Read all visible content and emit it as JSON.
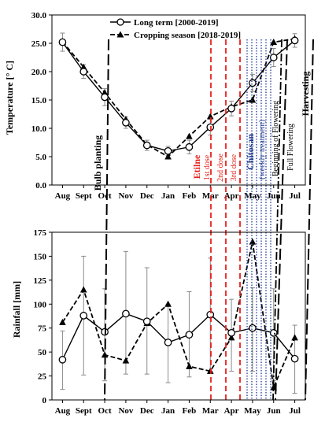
{
  "colors": {
    "frame": "#000000",
    "etilne": "#e8201c",
    "chitosan": "#1f3a93",
    "series": "#000000"
  },
  "chart_data": [
    {
      "type": "line",
      "ylabel": "Temperature [° C]",
      "ylim": [
        0,
        30
      ],
      "yticks": [
        "0.0",
        "5.0",
        "10.0",
        "15.0",
        "20.0",
        "25.0",
        "30.0"
      ],
      "categories": [
        "Aug",
        "Sept",
        "Oct",
        "Nov",
        "Dec",
        "Jan",
        "Feb",
        "Mar",
        "Apr",
        "May",
        "Jun",
        "Jul"
      ],
      "legend_position": "top",
      "series": [
        {
          "name": "Long term [2000-2019]",
          "style": "solid-open-circle",
          "values": [
            25.2,
            20.0,
            15.5,
            11.0,
            7.0,
            6.0,
            6.7,
            10.2,
            13.5,
            18.0,
            22.5,
            25.5
          ],
          "error": [
            1.6,
            1.2,
            1.5,
            1.0,
            0.9,
            0.8,
            1.2,
            1.4,
            1.3,
            1.5,
            1.6,
            1.2
          ]
        },
        {
          "name": "Cropping season [2018-2019]",
          "style": "dashed-filled-triangle",
          "values": [
            25.3,
            20.8,
            16.3,
            11.6,
            7.1,
            5.0,
            8.6,
            12.1,
            13.8,
            15.0,
            25.2,
            25.8
          ]
        }
      ],
      "annotations": {
        "bulb_planting": "Bulb planting",
        "etilne": "Etilne",
        "dose_1": "1st dose",
        "dose_2": "2nd dose",
        "dose_3": "3rd dose",
        "chitosan": "Chitosan",
        "chitosan_sub": "(weekly treatment)",
        "beginning_flowering": "Beginning of Flowering",
        "full_flowering": "Full Flowering",
        "harvesting": "Harvesting"
      }
    },
    {
      "type": "line",
      "ylabel": "Rainfall [mm]",
      "ylim": [
        0,
        175
      ],
      "yticks": [
        "0",
        "25",
        "50",
        "75",
        "100",
        "125",
        "150",
        "175"
      ],
      "categories": [
        "Aug",
        "Sept",
        "Oct",
        "Nov",
        "Dec",
        "Jan",
        "Feb",
        "Mar",
        "Apr",
        "May",
        "Jun",
        "Jul"
      ],
      "series": [
        {
          "name": "Long term [2000-2019]",
          "style": "solid-open-circle",
          "values": [
            42,
            88,
            71,
            90,
            82,
            60,
            68,
            89,
            70,
            75,
            70,
            43
          ],
          "error_low": [
            11,
            26,
            20,
            27,
            27,
            18,
            24,
            30,
            30,
            30,
            20,
            7
          ],
          "error_high": [
            72,
            150,
            116,
            155,
            138,
            100,
            113,
            148,
            105,
            117,
            116,
            78
          ]
        },
        {
          "name": "Cropping season [2018-2019]",
          "style": "dashed-filled-triangle",
          "values": [
            81,
            115,
            47,
            41,
            80,
            100,
            35,
            30,
            65,
            165,
            13,
            65
          ]
        }
      ]
    }
  ]
}
